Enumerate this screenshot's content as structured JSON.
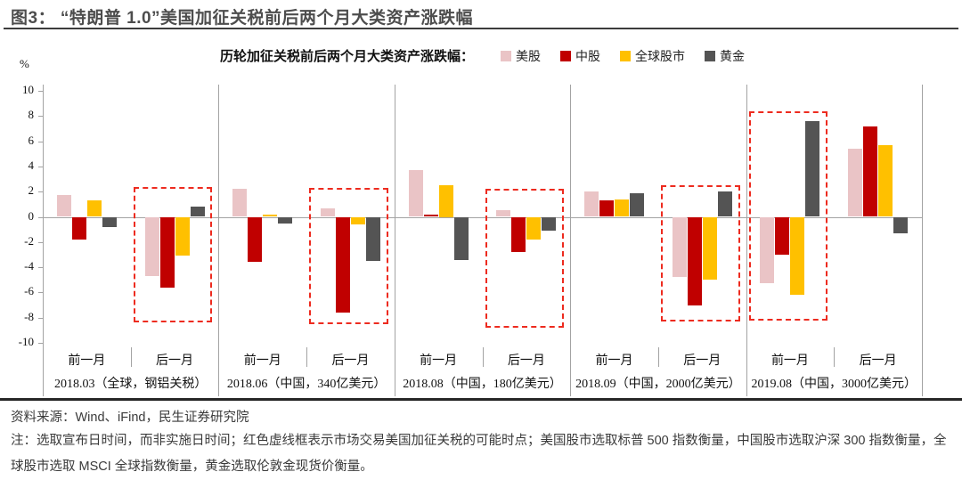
{
  "figure": {
    "title": "图3： “特朗普 1.0”美国加征关税前后两个月大类资产涨跌幅"
  },
  "chart": {
    "subtitle": "历轮加征关税前后两个月大类资产涨跌幅：",
    "unit": "%",
    "legend": [
      {
        "label": "美股",
        "color": "#eac4c6"
      },
      {
        "label": "中股",
        "color": "#c00000"
      },
      {
        "label": "全球股市",
        "color": "#ffc000"
      },
      {
        "label": "黄金",
        "color": "#545454"
      }
    ],
    "highlight_box_color": "#ed2b1f",
    "axis_color": "#a3a3a3"
  },
  "chart_data": {
    "type": "bar",
    "title": "历轮加征关税前后两个月大类资产涨跌幅：",
    "ylabel": "%",
    "ylim": [
      -10,
      10
    ],
    "ytick_step": 2,
    "grid": false,
    "legend_position": "top",
    "series_names": [
      "美股",
      "中股",
      "全球股市",
      "黄金"
    ],
    "series_colors": [
      "#eac4c6",
      "#c00000",
      "#ffc000",
      "#545454"
    ],
    "highlight_note": "红色虚线框表示市场交易美国加征关税的可能时点",
    "groups": [
      {
        "label": "2018.03（全球，钢铝关税）",
        "subgroups": [
          {
            "label": "前一月",
            "values": [
              1.7,
              -1.8,
              1.3,
              -0.8
            ],
            "highlighted": false
          },
          {
            "label": "后一月",
            "values": [
              -4.7,
              -5.6,
              -3.1,
              0.8
            ],
            "highlighted": true,
            "box_top": 2.4,
            "box_bottom": -8.4
          }
        ]
      },
      {
        "label": "2018.06（中国，340亿美元）",
        "subgroups": [
          {
            "label": "前一月",
            "values": [
              2.2,
              -3.6,
              0.2,
              -0.5
            ],
            "highlighted": false
          },
          {
            "label": "后一月",
            "values": [
              0.7,
              -7.6,
              -0.6,
              -3.5
            ],
            "highlighted": true,
            "box_top": 2.3,
            "box_bottom": -8.5
          }
        ]
      },
      {
        "label": "2018.08（中国，180亿美元）",
        "subgroups": [
          {
            "label": "前一月",
            "values": [
              3.7,
              0.2,
              2.5,
              -3.4
            ],
            "highlighted": false
          },
          {
            "label": "后一月",
            "values": [
              0.5,
              -2.8,
              -1.8,
              -1.1
            ],
            "highlighted": true,
            "box_top": 2.2,
            "box_bottom": -8.8
          }
        ]
      },
      {
        "label": "2018.09（中国，2000亿美元）",
        "subgroups": [
          {
            "label": "前一月",
            "values": [
              2.0,
              1.3,
              1.4,
              1.9
            ],
            "highlighted": false
          },
          {
            "label": "后一月",
            "values": [
              -4.8,
              -7.0,
              -5.0,
              2.0
            ],
            "highlighted": true,
            "box_top": 2.5,
            "box_bottom": -8.3
          }
        ]
      },
      {
        "label": "2019.08（中国，3000亿美元）",
        "subgroups": [
          {
            "label": "前一月",
            "values": [
              -5.3,
              -3.0,
              -6.2,
              7.6
            ],
            "highlighted": true,
            "box_top": 8.4,
            "box_bottom": -8.2
          },
          {
            "label": "后一月",
            "values": [
              5.4,
              7.2,
              5.7,
              -1.3
            ],
            "highlighted": false
          }
        ]
      }
    ]
  },
  "footer": {
    "source": "资料来源：Wind、iFind，民生证券研究院",
    "note": "注：选取宣布日时间，而非实施日时间；红色虚线框表示市场交易美国加征关税的可能时点；美国股市选取标普 500 指数衡量，中国股市选取沪深 300 指数衡量，全球股市选取 MSCI 全球指数衡量，黄金选取伦敦金现货价衡量。"
  }
}
